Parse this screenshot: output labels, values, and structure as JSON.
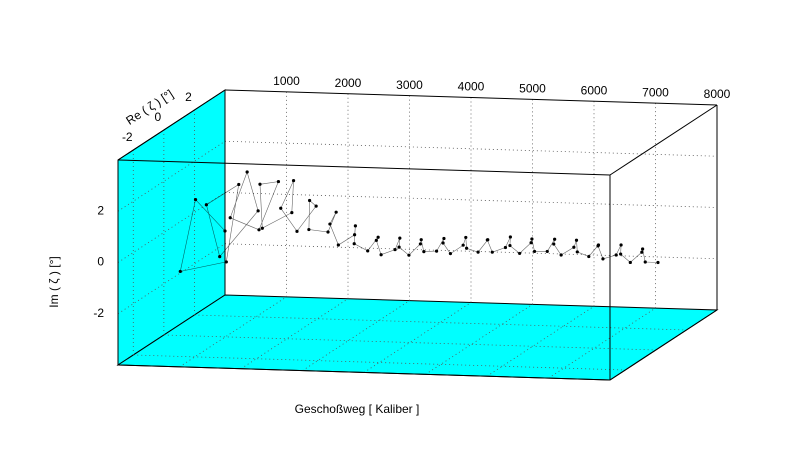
{
  "chart_data": {
    "type": "line3d",
    "x_label": "Geschoßweg [ Kaliber ]",
    "re_label": "Re ( ζ ) [°]",
    "im_label": "Im ( ζ ) [°]",
    "xlim": [
      0,
      8000
    ],
    "xticks": [
      1000,
      2000,
      3000,
      4000,
      5000,
      6000,
      7000,
      8000
    ],
    "relim": [
      -3,
      4
    ],
    "reticks": [
      -2,
      0,
      2
    ],
    "imlim": [
      -4,
      4
    ],
    "imticks": [
      -2,
      0,
      2
    ],
    "wall_color": "#00ffff",
    "grid": true,
    "x": [
      0,
      100,
      200,
      300,
      400,
      500,
      600,
      700,
      800,
      900,
      1000,
      1100,
      1200,
      1300,
      1400,
      1500,
      1600,
      1700,
      1800,
      1900,
      2000,
      2100,
      2200,
      2300,
      2400,
      2500,
      2600,
      2700,
      2800,
      2900,
      3000,
      3100,
      3200,
      3300,
      3400,
      3500,
      3600,
      3700,
      3800,
      3900,
      4000,
      4100,
      4200,
      4300,
      4400,
      4500,
      4600,
      4700,
      4800,
      4900,
      5000,
      5100,
      5200,
      5300,
      5400,
      5500,
      5600,
      5700,
      5800,
      5900,
      6000,
      6100,
      6200,
      6300,
      6400,
      6500,
      6600,
      6700,
      6800,
      6900,
      7000,
      7100,
      7200,
      7300,
      7400,
      7500
    ],
    "series": [
      {
        "color": "#000000",
        "re": [
          4.0,
          1.67,
          0.27,
          2.88,
          3.29,
          0.77,
          1.24,
          3.35,
          2.23,
          0.72,
          2.2,
          3.07,
          1.46,
          1.21,
          2.74,
          2.45,
          1.21,
          1.87,
          2.72,
          1.89,
          1.44,
          2.29,
          2.42,
          1.61,
          1.76,
          2.42,
          2.07,
          1.59,
          2.07,
          2.35,
          1.83,
          1.74,
          2.25,
          2.16,
          1.71,
          1.95,
          2.3,
          1.95,
          1.72,
          2.15,
          2.23,
          1.77,
          1.85,
          2.28,
          2.05,
          1.7,
          2.05,
          2.28,
          1.85,
          1.77,
          2.23,
          2.15,
          1.72,
          1.95,
          2.3,
          1.95,
          1.72,
          2.15,
          2.23,
          1.77,
          1.85,
          2.28,
          2.05,
          1.7,
          2.05,
          2.28,
          1.85,
          1.77,
          2.23,
          2.15,
          1.72,
          1.95,
          2.3,
          1.95,
          1.72,
          2.15
        ],
        "im": [
          -1.5,
          0.64,
          -1.61,
          -2.25,
          0.62,
          0.82,
          -1.38,
          -0.41,
          1.55,
          0.36,
          -0.68,
          0.87,
          1.4,
          -0.21,
          -0.19,
          1.18,
          0.59,
          -0.56,
          0.1,
          0.65,
          -0.3,
          -0.72,
          0.01,
          -0.13,
          -1.0,
          -0.85,
          -0.36,
          -0.86,
          -1.32,
          -0.89,
          -0.8,
          -1.32,
          -1.31,
          -0.82,
          -0.99,
          -1.39,
          -1.08,
          -0.77,
          -1.14,
          -1.28,
          -0.81,
          -0.8,
          -1.24,
          -1.07,
          -0.67,
          -0.95,
          -1.23,
          -0.83,
          -0.66,
          -1.1,
          -1.09,
          -0.64,
          -0.8,
          -1.19,
          -0.9,
          -0.61,
          -1.0,
          -1.16,
          -0.71,
          -0.71,
          -1.16,
          -1.02,
          -0.65,
          -0.96,
          -1.27,
          -0.9,
          -0.76,
          -1.23,
          -1.25,
          -0.82,
          -1.0,
          -1.41,
          -1.14,
          -0.87,
          -1.28,
          -1.46
        ]
      }
    ]
  }
}
